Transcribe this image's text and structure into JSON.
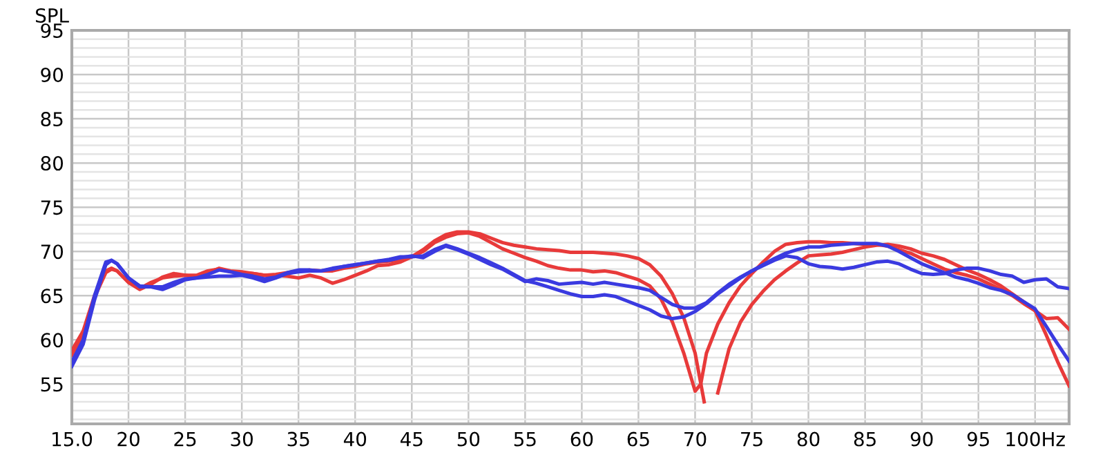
{
  "chart_data": {
    "type": "line",
    "ylabel": "SPL",
    "xlim": [
      15,
      103
    ],
    "ylim": [
      50.5,
      95
    ],
    "xticks": [
      {
        "value": 15,
        "label": "15.0"
      },
      20,
      25,
      30,
      35,
      40,
      45,
      50,
      55,
      60,
      65,
      70,
      75,
      80,
      85,
      90,
      95,
      {
        "value": 100,
        "label": "100Hz"
      }
    ],
    "yticks": [
      {
        "value": 51,
        "label": null
      },
      {
        "value": 52,
        "label": null
      },
      {
        "value": 53,
        "label": null
      },
      {
        "value": 54,
        "label": null
      },
      55,
      {
        "value": 56,
        "label": null
      },
      {
        "value": 57,
        "label": null
      },
      {
        "value": 58,
        "label": null
      },
      {
        "value": 59,
        "label": null
      },
      60,
      {
        "value": 61,
        "label": null
      },
      {
        "value": 62,
        "label": null
      },
      {
        "value": 63,
        "label": null
      },
      {
        "value": 64,
        "label": null
      },
      65,
      {
        "value": 66,
        "label": null
      },
      {
        "value": 67,
        "label": null
      },
      {
        "value": 68,
        "label": null
      },
      {
        "value": 69,
        "label": null
      },
      70,
      {
        "value": 71,
        "label": null
      },
      {
        "value": 72,
        "label": null
      },
      {
        "value": 73,
        "label": null
      },
      {
        "value": 74,
        "label": null
      },
      75,
      {
        "value": 76,
        "label": null
      },
      {
        "value": 77,
        "label": null
      },
      {
        "value": 78,
        "label": null
      },
      {
        "value": 79,
        "label": null
      },
      80,
      {
        "value": 81,
        "label": null
      },
      {
        "value": 82,
        "label": null
      },
      {
        "value": 83,
        "label": null
      },
      {
        "value": 84,
        "label": null
      },
      85,
      {
        "value": 86,
        "label": null
      },
      {
        "value": 87,
        "label": null
      },
      {
        "value": 88,
        "label": null
      },
      {
        "value": 89,
        "label": null
      },
      90,
      {
        "value": 91,
        "label": null
      },
      {
        "value": 92,
        "label": null
      },
      {
        "value": 93,
        "label": null
      },
      {
        "value": 94,
        "label": null
      },
      95
    ],
    "grid": true,
    "line_style": "solid",
    "marker": "none",
    "series": [
      {
        "color": "#e83a3a",
        "x": [
          15,
          16,
          17,
          18,
          18.5,
          19,
          20,
          21,
          22,
          23,
          24,
          25,
          26,
          27,
          28,
          29,
          30,
          31,
          32,
          33,
          34,
          35,
          36,
          37,
          38,
          39,
          40,
          41,
          42,
          43,
          44,
          45,
          46,
          47,
          48,
          49,
          50,
          51,
          52,
          53,
          54,
          55,
          56,
          57,
          58,
          59,
          60,
          61,
          62,
          63,
          64,
          65,
          66,
          67,
          68,
          69,
          70,
          70.8,
          71.2,
          71.7,
          72,
          73,
          74,
          75,
          76,
          77,
          78,
          79,
          80,
          81,
          82,
          83,
          84,
          85,
          86,
          87,
          88,
          89,
          90,
          91,
          92,
          93,
          94,
          95,
          96,
          97,
          98,
          99,
          100,
          101,
          102,
          103
        ],
        "values": [
          58.8,
          61,
          65,
          67.8,
          68.1,
          67.8,
          66.5,
          65.7,
          66.3,
          67.1,
          67.5,
          67.3,
          67.3,
          67.8,
          68,
          67.7,
          67.6,
          67.5,
          67.3,
          67.3,
          67.2,
          67,
          67.3,
          67,
          66.4,
          66.8,
          67.3,
          67.8,
          68.4,
          68.5,
          68.8,
          69.4,
          70.2,
          71.2,
          71.9,
          72.2,
          72.2,
          72,
          71.5,
          71,
          70.7,
          70.5,
          70.3,
          70.2,
          70.1,
          69.9,
          69.9,
          69.9,
          69.8,
          69.7,
          69.5,
          69.2,
          68.5,
          67.2,
          65.2,
          62.5,
          58.5,
          53,
          null,
          null,
          54,
          59,
          62,
          64,
          65.5,
          66.8,
          67.8,
          68.7,
          69.5,
          69.6,
          69.7,
          69.9,
          70.2,
          70.5,
          70.7,
          70.8,
          70.6,
          70.3,
          69.8,
          69.5,
          69.1,
          68.5,
          67.9,
          67.4,
          66.8,
          66.1,
          65.2,
          64.3,
          63.3,
          60.5,
          57.5,
          54.8
        ]
      },
      {
        "color": "#e83a3a",
        "x": [
          15,
          16,
          17,
          18,
          18.5,
          19,
          20,
          21,
          22,
          23,
          24,
          25,
          26,
          27,
          28,
          29,
          30,
          31,
          32,
          33,
          34,
          35,
          36,
          37,
          38,
          39,
          40,
          41,
          42,
          43,
          44,
          45,
          46,
          47,
          48,
          49,
          50,
          51,
          52,
          53,
          54,
          55,
          56,
          57,
          58,
          59,
          60,
          61,
          62,
          63,
          64,
          65,
          66,
          67,
          68,
          69,
          70,
          70.5,
          71,
          72,
          73,
          74,
          75,
          76,
          77,
          78,
          79,
          80,
          81,
          82,
          83,
          84,
          85,
          86,
          87,
          88,
          89,
          90,
          91,
          92,
          93,
          94,
          95,
          96,
          97,
          98,
          99,
          100,
          101,
          102,
          103
        ],
        "values": [
          58.3,
          60.5,
          64.8,
          67.6,
          68,
          67.8,
          66.5,
          65.8,
          66.5,
          67,
          67.2,
          67.3,
          67.1,
          67.6,
          68.1,
          67.8,
          67.7,
          67.5,
          67.3,
          67.4,
          67.6,
          67.8,
          67.9,
          67.8,
          67.8,
          68.1,
          68.3,
          68.6,
          68.8,
          68.9,
          69.1,
          69.4,
          70,
          71,
          71.6,
          72,
          72.1,
          71.7,
          71,
          70.3,
          69.8,
          69.3,
          68.9,
          68.4,
          68.1,
          67.9,
          67.9,
          67.7,
          67.8,
          67.6,
          67.2,
          66.8,
          66.1,
          64.6,
          62,
          58.5,
          54.2,
          55,
          58.5,
          61.8,
          64.2,
          66.1,
          67.5,
          68.8,
          70,
          70.8,
          71,
          71.1,
          71.1,
          71,
          71,
          70.9,
          70.8,
          70.8,
          70.6,
          70.2,
          69.8,
          69.2,
          68.6,
          68,
          67.6,
          67.3,
          66.9,
          66.3,
          65.7,
          65,
          64.1,
          63.3,
          62.4,
          62.5,
          61.2
        ]
      },
      {
        "color": "#3a3ae0",
        "x": [
          15,
          16,
          17,
          18,
          18.5,
          19,
          20,
          21,
          22,
          23,
          24,
          25,
          26,
          27,
          28,
          29,
          30,
          31,
          32,
          33,
          34,
          35,
          36,
          37,
          38,
          39,
          40,
          41,
          42,
          43,
          44,
          45,
          46,
          47,
          48,
          49,
          50,
          51,
          52,
          53,
          54,
          55,
          56,
          57,
          58,
          59,
          60,
          61,
          62,
          63,
          64,
          65,
          66,
          67,
          68,
          69,
          70,
          71,
          72,
          73,
          74,
          75,
          76,
          77,
          78,
          79,
          80,
          81,
          82,
          83,
          84,
          85,
          86,
          87,
          88,
          89,
          90,
          91,
          92,
          93,
          94,
          95,
          96,
          97,
          98,
          99,
          100,
          101,
          102,
          103
        ],
        "values": [
          57,
          59.5,
          64.5,
          68.5,
          69,
          68.6,
          67,
          66.1,
          66,
          66,
          66.5,
          66.9,
          67,
          67.1,
          67.2,
          67.2,
          67.3,
          67,
          66.6,
          67,
          67.5,
          67.7,
          67.8,
          67.8,
          68,
          68.3,
          68.5,
          68.7,
          68.9,
          69.1,
          69.4,
          69.4,
          69.5,
          70.2,
          70.7,
          70.3,
          69.8,
          69.3,
          68.7,
          68.1,
          67.4,
          66.7,
          66.4,
          66,
          65.6,
          65.2,
          64.9,
          64.9,
          65.1,
          64.9,
          64.4,
          63.9,
          63.4,
          62.7,
          62.4,
          62.6,
          63.2,
          64.1,
          65.2,
          66.1,
          67,
          67.8,
          68.4,
          69,
          69.5,
          69.3,
          68.6,
          68.3,
          68.2,
          68,
          68.2,
          68.5,
          68.8,
          68.9,
          68.6,
          68,
          67.5,
          67.4,
          67.5,
          67.9,
          68.1,
          68.1,
          67.8,
          67.4,
          67.2,
          66.5,
          66.8,
          66.9,
          66,
          65.8
        ]
      },
      {
        "color": "#3a3ae0",
        "x": [
          15,
          16,
          17,
          18,
          18.5,
          19,
          20,
          21,
          22,
          23,
          24,
          25,
          26,
          27,
          28,
          29,
          30,
          31,
          32,
          33,
          34,
          35,
          36,
          37,
          38,
          39,
          40,
          41,
          42,
          43,
          44,
          45,
          46,
          47,
          48,
          49,
          50,
          51,
          52,
          53,
          54,
          55,
          56,
          57,
          58,
          59,
          60,
          61,
          62,
          63,
          64,
          65,
          66,
          67,
          68,
          69,
          70,
          71,
          72,
          73,
          74,
          75,
          76,
          77,
          78,
          79,
          80,
          81,
          82,
          83,
          84,
          85,
          86,
          87,
          88,
          89,
          90,
          91,
          92,
          93,
          94,
          95,
          96,
          97,
          98,
          99,
          100,
          101,
          102,
          103
        ],
        "values": [
          57.5,
          60,
          65,
          68.8,
          69,
          68.6,
          67,
          66,
          66,
          65.7,
          66.2,
          66.8,
          67,
          67.4,
          67.9,
          67.7,
          67.4,
          67.2,
          66.9,
          67.1,
          67.6,
          67.9,
          67.9,
          67.8,
          68.1,
          68.3,
          68.5,
          68.7,
          68.9,
          69,
          69.3,
          69.5,
          69.3,
          70,
          70.6,
          70.2,
          69.7,
          69.1,
          68.5,
          68,
          67.3,
          66.6,
          66.9,
          66.7,
          66.3,
          66.4,
          66.5,
          66.3,
          66.5,
          66.3,
          66.1,
          65.9,
          65.6,
          64.8,
          64,
          63.6,
          63.6,
          64.2,
          65.3,
          66.3,
          67.1,
          67.8,
          68.5,
          69.2,
          69.8,
          70.2,
          70.5,
          70.5,
          70.7,
          70.8,
          70.9,
          70.9,
          70.9,
          70.6,
          70,
          69.3,
          68.6,
          68.1,
          67.6,
          67.1,
          66.8,
          66.4,
          65.9,
          65.6,
          65.1,
          64.3,
          63.5,
          61.5,
          59.5,
          57.6
        ]
      }
    ]
  }
}
